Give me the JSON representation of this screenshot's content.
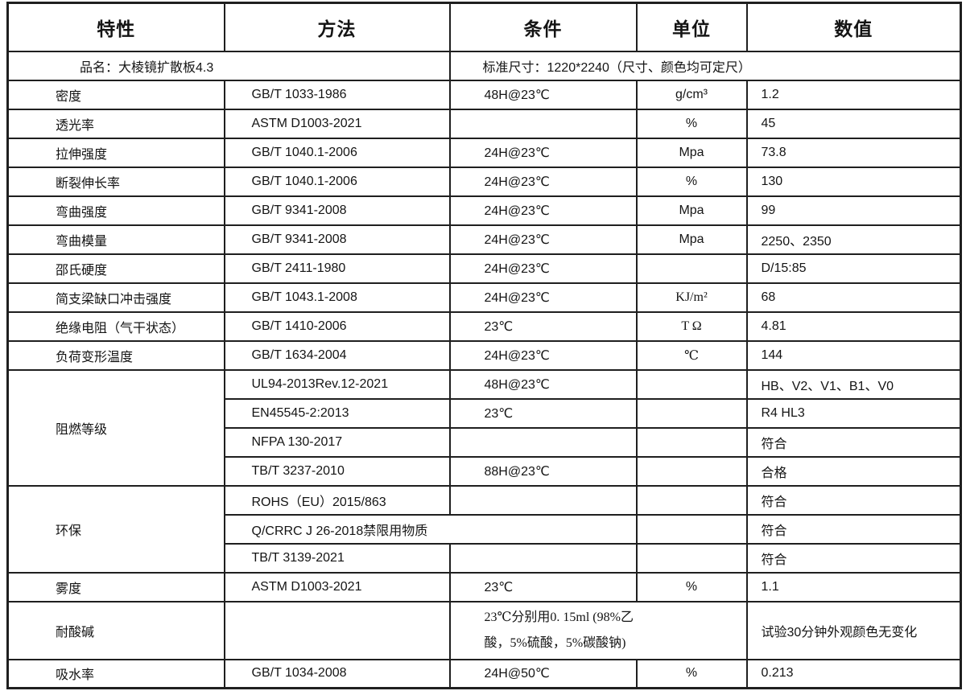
{
  "colors": {
    "border": "#1f1f1f",
    "text": "#141414",
    "background": "#ffffff"
  },
  "table": {
    "headers": [
      "特性",
      "方法",
      "条件",
      "单位",
      "数值"
    ],
    "product_row": {
      "name": "品名：大棱镜扩散板4.3",
      "size": "标准尺寸：1220*2240（尺寸、颜色均可定尺）"
    },
    "rows": [
      {
        "cells": [
          {
            "t": "密度",
            "cls": "c1"
          },
          {
            "t": "GB/T 1033-1986",
            "cls": "c2"
          },
          {
            "t": "48H@23℃",
            "cls": "c3"
          },
          {
            "t": "g/cm³",
            "cls": "c4"
          },
          {
            "t": "1.2",
            "cls": "c5"
          }
        ]
      },
      {
        "cells": [
          {
            "t": "透光率",
            "cls": "c1"
          },
          {
            "t": "ASTM D1003-2021",
            "cls": "c2"
          },
          {
            "t": "",
            "cls": "c3"
          },
          {
            "t": "%",
            "cls": "c4"
          },
          {
            "t": "45",
            "cls": "c5"
          }
        ]
      },
      {
        "cells": [
          {
            "t": "拉伸强度",
            "cls": "c1"
          },
          {
            "t": "GB/T 1040.1-2006",
            "cls": "c2"
          },
          {
            "t": "24H@23℃",
            "cls": "c3"
          },
          {
            "t": "Mpa",
            "cls": "c4"
          },
          {
            "t": "73.8",
            "cls": "c5"
          }
        ]
      },
      {
        "cells": [
          {
            "t": "断裂伸长率",
            "cls": "c1"
          },
          {
            "t": "GB/T 1040.1-2006",
            "cls": "c2"
          },
          {
            "t": "24H@23℃",
            "cls": "c3"
          },
          {
            "t": "%",
            "cls": "c4"
          },
          {
            "t": "130",
            "cls": "c5"
          }
        ]
      },
      {
        "cells": [
          {
            "t": "弯曲强度",
            "cls": "c1"
          },
          {
            "t": "GB/T 9341-2008",
            "cls": "c2"
          },
          {
            "t": "24H@23℃",
            "cls": "c3"
          },
          {
            "t": "Mpa",
            "cls": "c4"
          },
          {
            "t": "99",
            "cls": "c5"
          }
        ]
      },
      {
        "cells": [
          {
            "t": "弯曲模量",
            "cls": "c1"
          },
          {
            "t": "GB/T 9341-2008",
            "cls": "c2"
          },
          {
            "t": "24H@23℃",
            "cls": "c3"
          },
          {
            "t": "Mpa",
            "cls": "c4"
          },
          {
            "t": "2250、2350",
            "cls": "c5"
          }
        ]
      },
      {
        "cells": [
          {
            "t": "邵氏硬度",
            "cls": "c1"
          },
          {
            "t": "GB/T 2411-1980",
            "cls": "c2"
          },
          {
            "t": "24H@23℃",
            "cls": "c3"
          },
          {
            "t": "",
            "cls": "c4"
          },
          {
            "t": "D/15:85",
            "cls": "c5"
          }
        ]
      },
      {
        "cells": [
          {
            "t": "简支梁缺口冲击强度",
            "cls": "c1"
          },
          {
            "t": "GB/T 1043.1-2008",
            "cls": "c2"
          },
          {
            "t": "24H@23℃",
            "cls": "c3"
          },
          {
            "t": "KJ/m²",
            "cls": "c4 serif"
          },
          {
            "t": "68",
            "cls": "c5"
          }
        ]
      },
      {
        "cells": [
          {
            "t": "绝缘电阻（气干状态）",
            "cls": "c1"
          },
          {
            "t": "GB/T 1410-2006",
            "cls": "c2"
          },
          {
            "t": "23℃",
            "cls": "c3"
          },
          {
            "t": "T Ω",
            "cls": "c4 serif"
          },
          {
            "t": "4.81",
            "cls": "c5"
          }
        ]
      },
      {
        "cells": [
          {
            "t": "负荷变形温度",
            "cls": "c1"
          },
          {
            "t": "GB/T 1634-2004",
            "cls": "c2"
          },
          {
            "t": "24H@23℃",
            "cls": "c3"
          },
          {
            "t": "℃",
            "cls": "c4 serif"
          },
          {
            "t": "144",
            "cls": "c5"
          }
        ]
      },
      {
        "cells": [
          {
            "t": "阻燃等级",
            "cls": "c1",
            "rowspan": 4
          },
          {
            "t": "UL94-2013Rev.12-2021",
            "cls": "c2"
          },
          {
            "t": "48H@23℃",
            "cls": "c3"
          },
          {
            "t": "",
            "cls": "c4"
          },
          {
            "t": "HB、V2、V1、B1、V0",
            "cls": "c5"
          }
        ]
      },
      {
        "cells": [
          {
            "t": "EN45545-2:2013",
            "cls": "c2"
          },
          {
            "t": "23℃",
            "cls": "c3"
          },
          {
            "t": "",
            "cls": "c4"
          },
          {
            "t": "R4 HL3",
            "cls": "c5"
          }
        ]
      },
      {
        "cells": [
          {
            "t": "NFPA 130-2017",
            "cls": "c2"
          },
          {
            "t": "",
            "cls": "c3"
          },
          {
            "t": "",
            "cls": "c4"
          },
          {
            "t": "符合",
            "cls": "c5"
          }
        ]
      },
      {
        "cells": [
          {
            "t": "TB/T 3237-2010",
            "cls": "c2"
          },
          {
            "t": "88H@23℃",
            "cls": "c3"
          },
          {
            "t": "",
            "cls": "c4"
          },
          {
            "t": "合格",
            "cls": "c5"
          }
        ]
      },
      {
        "cells": [
          {
            "t": "环保",
            "cls": "c1",
            "rowspan": 3
          },
          {
            "t": "ROHS（EU）2015/863",
            "cls": "c2"
          },
          {
            "t": "",
            "cls": "c3"
          },
          {
            "t": "",
            "cls": "c4"
          },
          {
            "t": "符合",
            "cls": "c5"
          }
        ]
      },
      {
        "cells": [
          {
            "t": "Q/CRRC J 26-2018禁限用物质",
            "cls": "c2",
            "colspan": 2
          },
          {
            "t": "",
            "cls": "c4"
          },
          {
            "t": "符合",
            "cls": "c5"
          }
        ]
      },
      {
        "cells": [
          {
            "t": "TB/T 3139-2021",
            "cls": "c2"
          },
          {
            "t": "",
            "cls": "c3"
          },
          {
            "t": "",
            "cls": "c4"
          },
          {
            "t": "符合",
            "cls": "c5"
          }
        ]
      },
      {
        "cells": [
          {
            "t": "雾度",
            "cls": "c1"
          },
          {
            "t": "ASTM D1003-2021",
            "cls": "c2"
          },
          {
            "t": "23℃",
            "cls": "c3"
          },
          {
            "t": "%",
            "cls": "c4"
          },
          {
            "t": "1.1",
            "cls": "c5"
          }
        ]
      },
      {
        "h": 72,
        "cells": [
          {
            "t": "耐酸碱",
            "cls": "c1"
          },
          {
            "t": "",
            "cls": "c2"
          },
          {
            "t": "23℃分别用0. 15ml (98%乙\n酸，5%硫酸，5%碳酸钠)",
            "cls": "c3 serif pre",
            "colspan": 2
          },
          {
            "t": "试验30分钟外观颜色无变化",
            "cls": "c5"
          }
        ]
      },
      {
        "cells": [
          {
            "t": "吸水率",
            "cls": "c1"
          },
          {
            "t": "GB/T 1034-2008",
            "cls": "c2"
          },
          {
            "t": "24H@50℃",
            "cls": "c3"
          },
          {
            "t": "%",
            "cls": "c4"
          },
          {
            "t": "0.213",
            "cls": "c5"
          }
        ]
      }
    ]
  }
}
